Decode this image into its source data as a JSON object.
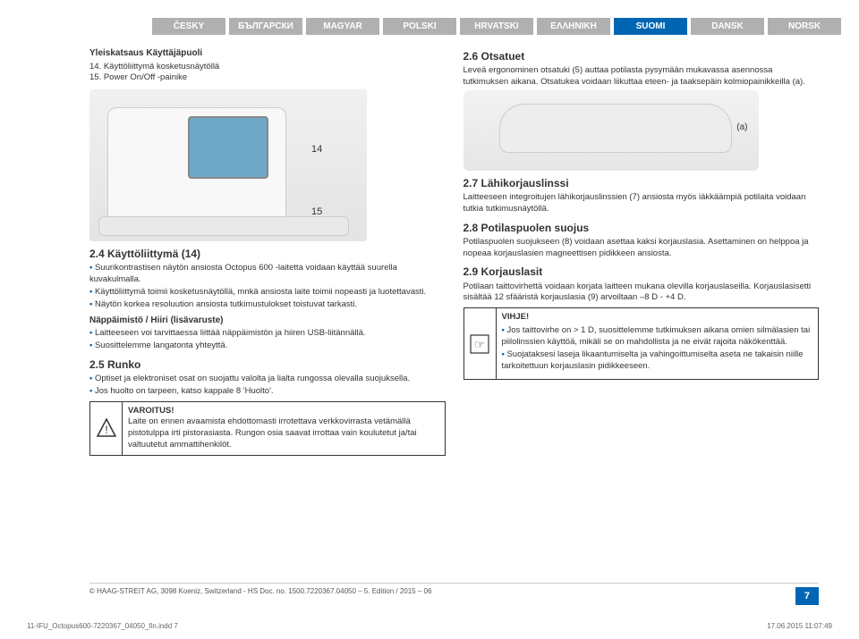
{
  "lang_tabs": [
    "ČESKY",
    "БЪЛГАРСКИ",
    "MAGYAR",
    "POLSKI",
    "HRVATSKI",
    "ΕΛΛΗΝΙΚΗ",
    "SUOMI",
    "DANSK",
    "NORSK"
  ],
  "lang_active_index": 6,
  "left": {
    "title": "Yleiskatsaus Käyttäjäpuoli",
    "line14": "14. Käyttöliittymä kosketusnäytöllä",
    "line15": "15. Power On/Off -painike",
    "lab14": "14",
    "lab15": "15",
    "s24_head": "2.4    Käyttöliittymä (14)",
    "s24_b1": "Suurikontrastisen näytön ansiosta Octopus 600 -laitetta voidaan käyttää suurella kuvakulmalla.",
    "s24_b2": "Käyttöliittymä toimii kosketusnäytöllä, mnkä ansiosta laite toimii nopeasti ja luotettavasti.",
    "s24_b3": "Näytön korkea resoluution ansiosta tutkimustulokset toistuvat tarkasti.",
    "kb_head": "Näppäimistö / Hiiri (lisävaruste)",
    "kb_b1": "Laitteeseen voi tarvittaessa liittää näppäimistön ja hiiren USB-liitännällä.",
    "kb_b2": "Suosittelemme langatonta yhteyttä.",
    "s25_head": "2.5    Runko",
    "s25_b1": "Optiset ja elektroniset osat on suojattu valolta ja lialta rungossa olevalla suojuksella.",
    "s25_b2": "Jos huolto on tarpeen, katso kappale 8 'Huolto'.",
    "warn_title": "VAROITUS!",
    "warn_body": "Laite on ennen avaamista ehdottomasti irrotettava verkkovirrasta vetämällä pistotulppa irti pistorasiasta. Rungon osia saavat irrottaa vain koulutetut ja/tai valtuutetut ammattihenkilöt."
  },
  "right": {
    "s26_head": "2.6    Otsatuet",
    "s26_p": "Leveä ergonominen otsatuki (5) auttaa potilasta pysymään mukavassa asennossa tutkimuksen aikana. Otsatukea voidaan liikuttaa eteen- ja taaksepäin kolmiopainikkeilla (a).",
    "a_label": "(a)",
    "s27_head": "2.7    Lähikorjauslinssi",
    "s27_p": "Laitteeseen integroitujen lähikorjauslinssien (7) ansiosta myös iäkkäämpiä potilaita voidaan tutkia tutkimusnäytöllä.",
    "s28_head": "2.8    Potilaspuolen suojus",
    "s28_p": "Potilaspuolen suojukseen (8) voidaan asettaa kaksi korjauslasia. Asettaminen on helppoa ja nopeaa korjauslasien magneettisen pidikkeen ansiosta.",
    "s29_head": "2.9    Korjauslasit",
    "s29_p": "Potilaan taittovirhettä voidaan korjata laitteen mukana olevilla korjauslaseilla. Korjauslasisetti sisältää 12 sfääristä korjauslasia (9) arvoiltaan –8 D - +4 D.",
    "hint_title": "VIHJE!",
    "hint_b1": "Jos taittovirhe on > 1 D, suosittelemme tutkimuksen aikana omien silmälasien tai piilolinssien käyttöä, mikäli se on mahdollista ja ne eivät rajoita näkökenttää.",
    "hint_b2": "Suojataksesi laseja likaantumiselta ja vahingoittumiselta aseta ne takaisin niille tarkoitettuun korjauslasin pidikkeeseen."
  },
  "footer": {
    "copyright": "© HAAG-STREIT AG, 3098 Koeniz, Switzerland - HS Doc. no. 1500.7220367.04050 – 5. Edition / 2015 – 06",
    "page": "7",
    "indd": "11-IFU_Octopus600-7220367_04050_fin.indd   7",
    "timestamp": "17.06.2015   11:07:49"
  },
  "colors": {
    "brand": "#0066b3",
    "tab_inactive": "#b0b0b0",
    "text": "#333333"
  }
}
